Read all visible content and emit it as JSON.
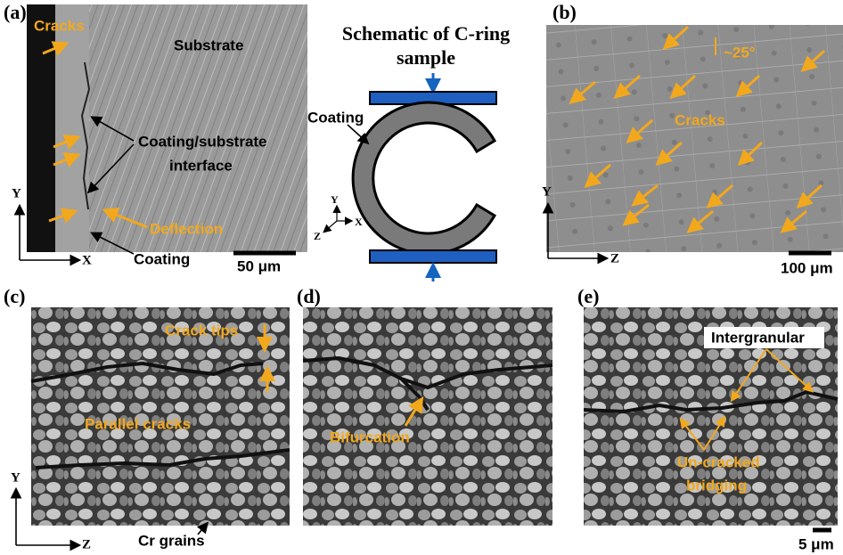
{
  "panel_a": {
    "label": "(a)",
    "cracks": "Cracks",
    "substrate": "Substrate",
    "interface_line1": "Coating/substrate",
    "interface_line2": "interface",
    "deflection": "Deflection",
    "coating": "Coating",
    "scale_bar": "50 μm",
    "axis_y": "Y",
    "axis_x": "X"
  },
  "schematic": {
    "title_line1": "Schematic of C-ring",
    "title_line2": "sample",
    "coating": "Coating",
    "axis_y": "Y",
    "axis_x": "X",
    "axis_z": "Z"
  },
  "panel_b": {
    "label": "(b)",
    "angle": "~25°",
    "cracks": "Cracks",
    "axis_y": "Y",
    "axis_z": "Z",
    "scale_bar": "100 μm"
  },
  "panel_c": {
    "label": "(c)",
    "crack_tips": "Crack tips",
    "parallel_cracks": "Parallel cracks",
    "cr_grains": "Cr grains",
    "axis_y": "Y",
    "axis_z": "Z"
  },
  "panel_d": {
    "label": "(d)",
    "bifurcation": "Bifurcation"
  },
  "panel_e": {
    "label": "(e)",
    "intergranular": "Intergranular",
    "uncracked_line1": "Un-cracked",
    "uncracked_line2": "bridging",
    "scale_bar": "5 μm"
  }
}
